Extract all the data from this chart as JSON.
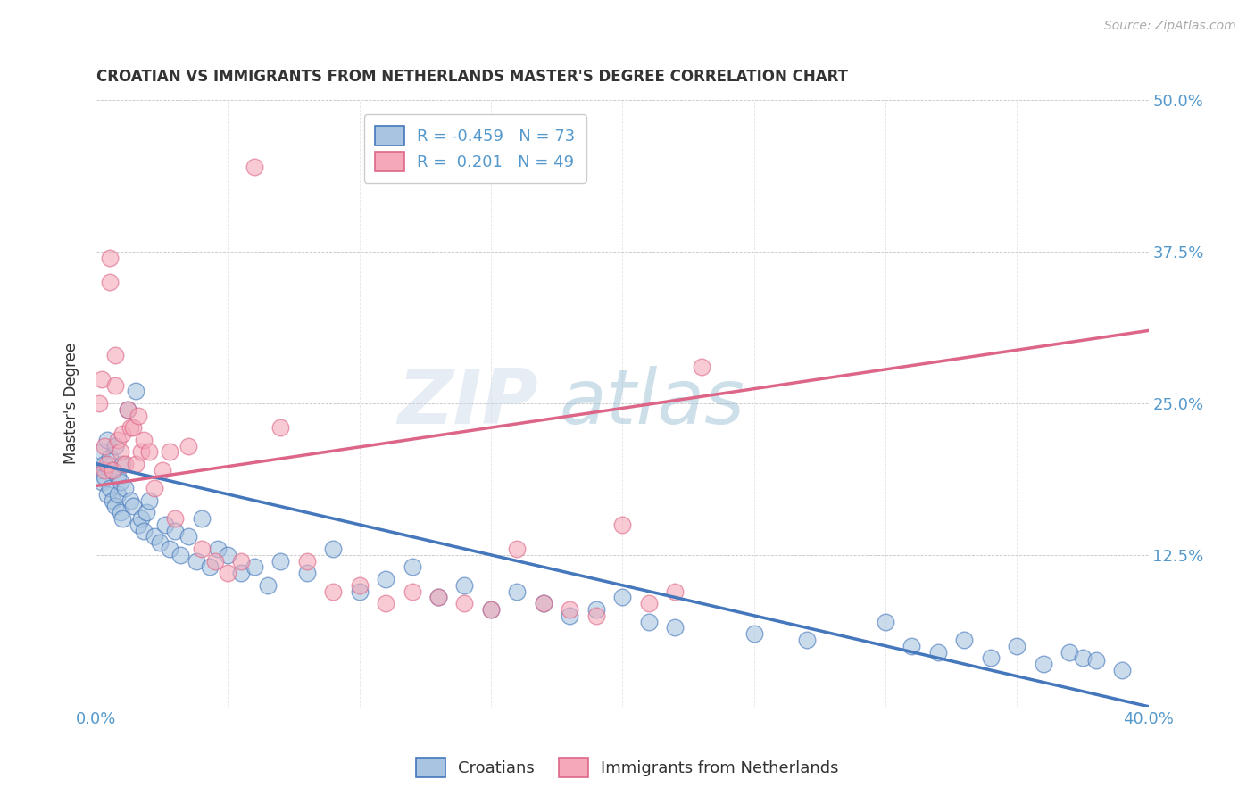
{
  "title": "CROATIAN VS IMMIGRANTS FROM NETHERLANDS MASTER'S DEGREE CORRELATION CHART",
  "source": "Source: ZipAtlas.com",
  "ylabel": "Master's Degree",
  "xlim": [
    0.0,
    0.4
  ],
  "ylim": [
    0.0,
    0.5
  ],
  "yticks": [
    0.0,
    0.125,
    0.25,
    0.375,
    0.5
  ],
  "ytick_labels": [
    "",
    "12.5%",
    "25.0%",
    "37.5%",
    "50.0%"
  ],
  "xticks": [
    0.0,
    0.05,
    0.1,
    0.15,
    0.2,
    0.25,
    0.3,
    0.35,
    0.4
  ],
  "xtick_labels": [
    "0.0%",
    "",
    "",
    "",
    "",
    "",
    "",
    "",
    "40.0%"
  ],
  "blue_R": -0.459,
  "blue_N": 73,
  "pink_R": 0.201,
  "pink_N": 49,
  "blue_color": "#a8c4e0",
  "pink_color": "#f4a8b8",
  "blue_line_color": "#4477bb",
  "pink_line_color": "#dd6688",
  "watermark": "ZIPatlas",
  "background_color": "#ffffff",
  "legend_label_blue": "Croatians",
  "legend_label_pink": "Immigrants from Netherlands",
  "blue_scatter_x": [
    0.001,
    0.002,
    0.002,
    0.003,
    0.003,
    0.004,
    0.004,
    0.005,
    0.005,
    0.006,
    0.006,
    0.007,
    0.007,
    0.008,
    0.008,
    0.009,
    0.009,
    0.01,
    0.01,
    0.011,
    0.012,
    0.013,
    0.014,
    0.015,
    0.016,
    0.017,
    0.018,
    0.019,
    0.02,
    0.022,
    0.024,
    0.026,
    0.028,
    0.03,
    0.032,
    0.035,
    0.038,
    0.04,
    0.043,
    0.046,
    0.05,
    0.055,
    0.06,
    0.065,
    0.07,
    0.08,
    0.09,
    0.1,
    0.11,
    0.12,
    0.13,
    0.14,
    0.15,
    0.16,
    0.17,
    0.18,
    0.19,
    0.2,
    0.21,
    0.22,
    0.25,
    0.27,
    0.3,
    0.31,
    0.32,
    0.33,
    0.34,
    0.35,
    0.36,
    0.37,
    0.375,
    0.38,
    0.39
  ],
  "blue_scatter_y": [
    0.195,
    0.21,
    0.185,
    0.2,
    0.19,
    0.22,
    0.175,
    0.205,
    0.18,
    0.195,
    0.17,
    0.215,
    0.165,
    0.19,
    0.175,
    0.185,
    0.16,
    0.2,
    0.155,
    0.18,
    0.245,
    0.17,
    0.165,
    0.26,
    0.15,
    0.155,
    0.145,
    0.16,
    0.17,
    0.14,
    0.135,
    0.15,
    0.13,
    0.145,
    0.125,
    0.14,
    0.12,
    0.155,
    0.115,
    0.13,
    0.125,
    0.11,
    0.115,
    0.1,
    0.12,
    0.11,
    0.13,
    0.095,
    0.105,
    0.115,
    0.09,
    0.1,
    0.08,
    0.095,
    0.085,
    0.075,
    0.08,
    0.09,
    0.07,
    0.065,
    0.06,
    0.055,
    0.07,
    0.05,
    0.045,
    0.055,
    0.04,
    0.05,
    0.035,
    0.045,
    0.04,
    0.038,
    0.03
  ],
  "pink_scatter_x": [
    0.001,
    0.002,
    0.003,
    0.003,
    0.004,
    0.005,
    0.005,
    0.006,
    0.007,
    0.007,
    0.008,
    0.009,
    0.01,
    0.011,
    0.012,
    0.013,
    0.014,
    0.015,
    0.016,
    0.017,
    0.018,
    0.02,
    0.022,
    0.025,
    0.028,
    0.03,
    0.035,
    0.04,
    0.045,
    0.05,
    0.055,
    0.06,
    0.07,
    0.08,
    0.09,
    0.1,
    0.11,
    0.12,
    0.13,
    0.14,
    0.15,
    0.16,
    0.17,
    0.18,
    0.19,
    0.2,
    0.21,
    0.22,
    0.23
  ],
  "pink_scatter_y": [
    0.25,
    0.27,
    0.195,
    0.215,
    0.2,
    0.37,
    0.35,
    0.195,
    0.265,
    0.29,
    0.22,
    0.21,
    0.225,
    0.2,
    0.245,
    0.23,
    0.23,
    0.2,
    0.24,
    0.21,
    0.22,
    0.21,
    0.18,
    0.195,
    0.21,
    0.155,
    0.215,
    0.13,
    0.12,
    0.11,
    0.12,
    0.445,
    0.23,
    0.12,
    0.095,
    0.1,
    0.085,
    0.095,
    0.09,
    0.085,
    0.08,
    0.13,
    0.085,
    0.08,
    0.075,
    0.15,
    0.085,
    0.095,
    0.28
  ],
  "blue_trend_x": [
    0.0,
    0.4
  ],
  "blue_trend_y": [
    0.2,
    0.0
  ],
  "pink_trend_x": [
    0.0,
    0.4
  ],
  "pink_trend_y": [
    0.182,
    0.31
  ]
}
